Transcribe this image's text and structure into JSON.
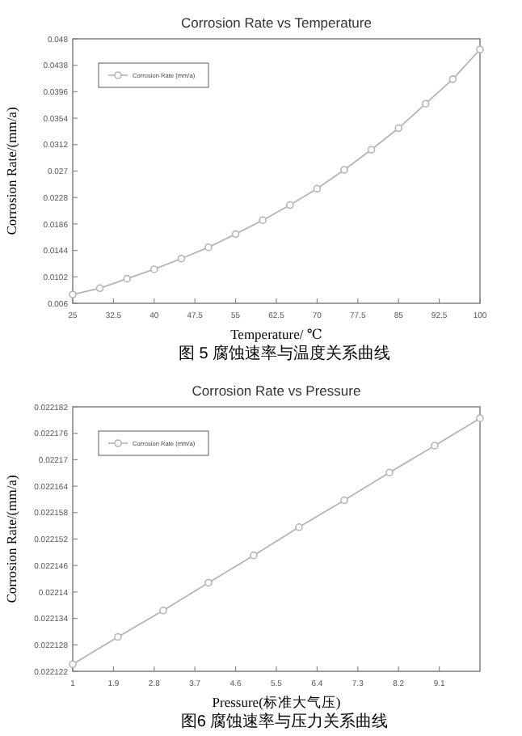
{
  "chart_data": [
    {
      "type": "line",
      "title": "Corrosion Rate  vs  Temperature",
      "xlabel": "Temperature/ ℃",
      "ylabel": "Corrosion Rate/(mm/a)",
      "annotations": [
        "图 5 腐蚀速率与温度关系曲线"
      ],
      "marker": "circle",
      "legend": "top left",
      "grid": false,
      "x": [
        25,
        30,
        35,
        40,
        45,
        50,
        55,
        60,
        65,
        70,
        75,
        80,
        85,
        90,
        95,
        100
      ],
      "series": [
        {
          "name": "Corrosion Rate (mm/a)",
          "color": "#b4b4b4",
          "values": [
            0.0074,
            0.0084,
            0.0099,
            0.0114,
            0.0131,
            0.0149,
            0.017,
            0.0192,
            0.0216,
            0.0242,
            0.0272,
            0.0304,
            0.0338,
            0.0377,
            0.0416,
            0.0463
          ]
        }
      ],
      "xlim": [
        25,
        100
      ],
      "xticks": [
        25,
        32.5,
        40,
        47.5,
        55,
        62.5,
        70,
        77.5,
        85,
        92.5,
        100
      ],
      "ylim": [
        0.006,
        0.048
      ],
      "yticks": [
        0.006,
        0.0102,
        0.0144,
        0.0186,
        0.0228,
        0.027,
        0.0312,
        0.0354,
        0.0396,
        0.0438,
        0.048
      ]
    },
    {
      "type": "line",
      "title": "Corrosion Rate  vs  Pressure",
      "xlabel": "Pressure(标准大气压)",
      "ylabel": "Corrosion Rate/(mm/a)",
      "annotations": [
        "图6 腐蚀速率与压力关系曲线"
      ],
      "marker": "circle",
      "legend": "top left",
      "grid": false,
      "x": [
        1,
        2,
        3,
        4,
        5,
        6,
        7,
        8,
        9,
        10
      ],
      "series": [
        {
          "name": "Corrosion Rate (mm/a)",
          "color": "#b4b4b4",
          "values": [
            0.0221236,
            0.0221298,
            0.0221358,
            0.0221421,
            0.0221483,
            0.0221547,
            0.0221608,
            0.0221671,
            0.0221732,
            0.0221794
          ]
        }
      ],
      "xlim": [
        1,
        10
      ],
      "xticks": [
        1,
        1.9,
        2.8,
        3.7,
        4.6,
        5.5,
        6.4,
        7.3,
        8.2,
        9.1
      ],
      "ylim": [
        0.022122,
        0.022182
      ],
      "yticks": [
        0.022122,
        0.022128,
        0.022134,
        0.02214,
        0.022146,
        0.022152,
        0.022158,
        0.022164,
        0.02217,
        0.022176,
        0.022182
      ]
    }
  ]
}
